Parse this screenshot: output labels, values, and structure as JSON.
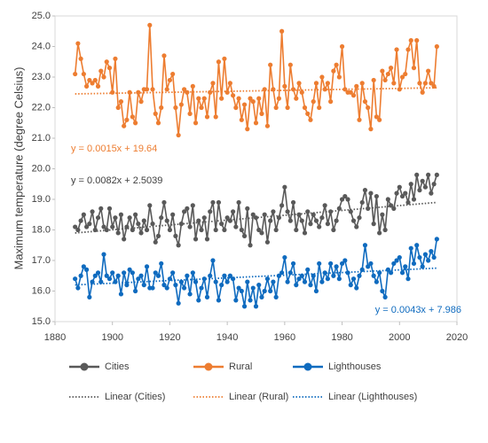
{
  "chart_data": {
    "type": "line",
    "y_label": "Maximum temperature (degree Celsius)",
    "x": [
      1887,
      1888,
      1889,
      1890,
      1891,
      1892,
      1893,
      1894,
      1895,
      1896,
      1897,
      1898,
      1899,
      1900,
      1901,
      1902,
      1903,
      1904,
      1905,
      1906,
      1907,
      1908,
      1909,
      1910,
      1911,
      1912,
      1913,
      1914,
      1915,
      1916,
      1917,
      1918,
      1919,
      1920,
      1921,
      1922,
      1923,
      1924,
      1925,
      1926,
      1927,
      1928,
      1929,
      1930,
      1931,
      1932,
      1933,
      1934,
      1935,
      1936,
      1937,
      1938,
      1939,
      1940,
      1941,
      1942,
      1943,
      1944,
      1945,
      1946,
      1947,
      1948,
      1949,
      1950,
      1951,
      1952,
      1953,
      1954,
      1955,
      1956,
      1957,
      1958,
      1959,
      1960,
      1961,
      1962,
      1963,
      1964,
      1965,
      1966,
      1967,
      1968,
      1969,
      1970,
      1971,
      1972,
      1973,
      1974,
      1975,
      1976,
      1977,
      1978,
      1979,
      1980,
      1981,
      1982,
      1983,
      1984,
      1985,
      1986,
      1987,
      1988,
      1989,
      1990,
      1991,
      1992,
      1993,
      1994,
      1995,
      1996,
      1997,
      1998,
      1999,
      2000,
      2001,
      2002,
      2003,
      2004,
      2005,
      2006,
      2007,
      2008,
      2009,
      2010,
      2011,
      2012,
      2013
    ],
    "series": [
      {
        "name": "Cities",
        "color": "#595959",
        "values": [
          18.1,
          18.0,
          18.3,
          18.5,
          18.1,
          18.2,
          18.6,
          18.0,
          18.4,
          18.7,
          18.1,
          18.0,
          18.7,
          18.1,
          18.4,
          17.9,
          18.5,
          17.7,
          18.1,
          18.4,
          18.0,
          18.5,
          18.2,
          17.9,
          18.3,
          18.0,
          18.8,
          18.2,
          17.6,
          17.8,
          18.4,
          18.9,
          18.3,
          18.0,
          18.5,
          17.8,
          17.5,
          18.2,
          18.6,
          18.7,
          18.1,
          18.8,
          17.7,
          18.3,
          18.0,
          18.4,
          17.7,
          18.6,
          18.9,
          18.0,
          18.9,
          18.2,
          18.0,
          18.4,
          18.3,
          18.6,
          18.1,
          18.9,
          18.0,
          17.8,
          18.7,
          17.5,
          18.5,
          18.4,
          18.0,
          17.9,
          18.5,
          17.6,
          18.3,
          18.6,
          18.0,
          18.4,
          18.8,
          19.4,
          18.6,
          18.3,
          18.9,
          18.0,
          18.5,
          18.3,
          17.9,
          18.6,
          18.2,
          18.5,
          18.3,
          18.1,
          18.4,
          18.8,
          18.2,
          18.6,
          18.0,
          18.3,
          18.7,
          19.0,
          19.1,
          19.0,
          18.6,
          18.3,
          18.1,
          18.4,
          18.9,
          19.3,
          18.7,
          19.2,
          18.2,
          19.1,
          17.9,
          18.5,
          18.0,
          19.0,
          18.8,
          18.7,
          19.2,
          19.4,
          19.1,
          19.2,
          18.9,
          19.5,
          19.0,
          19.8,
          19.3,
          19.6,
          19.4,
          19.8,
          19.2,
          19.5,
          19.8
        ]
      },
      {
        "name": "Rural",
        "color": "#ed7d31",
        "values": [
          23.1,
          24.1,
          23.6,
          23.1,
          22.7,
          22.9,
          22.8,
          22.9,
          22.7,
          23.2,
          23.0,
          23.5,
          23.3,
          22.5,
          23.6,
          22.0,
          22.2,
          21.4,
          21.6,
          22.5,
          21.7,
          21.5,
          22.5,
          22.2,
          22.6,
          22.6,
          24.7,
          22.6,
          21.8,
          21.5,
          22.0,
          23.7,
          22.6,
          22.9,
          23.1,
          22.0,
          21.1,
          22.1,
          22.6,
          22.5,
          21.8,
          22.7,
          21.5,
          22.3,
          22.0,
          22.3,
          21.7,
          22.5,
          22.8,
          21.7,
          23.5,
          22.3,
          23.6,
          22.5,
          22.8,
          22.4,
          22.0,
          22.3,
          21.6,
          22.1,
          21.3,
          22.3,
          22.2,
          21.5,
          22.3,
          21.8,
          22.6,
          21.4,
          23.4,
          22.6,
          22.0,
          22.3,
          24.5,
          22.7,
          22.0,
          23.4,
          22.6,
          22.3,
          22.8,
          22.5,
          22.0,
          21.8,
          21.6,
          22.2,
          22.8,
          22.0,
          23.0,
          22.6,
          22.8,
          22.2,
          23.2,
          23.4,
          23.0,
          24.0,
          22.6,
          22.5,
          22.5,
          22.4,
          22.7,
          21.6,
          22.8,
          22.2,
          22.0,
          21.3,
          22.9,
          21.7,
          21.6,
          23.2,
          22.9,
          23.1,
          23.3,
          22.8,
          23.9,
          22.6,
          23.0,
          23.1,
          23.9,
          24.2,
          23.3,
          24.2,
          22.8,
          22.5,
          22.8,
          23.2,
          22.8,
          22.7,
          24.0
        ]
      },
      {
        "name": "Lighthouses",
        "color": "#0f6bbf",
        "values": [
          16.4,
          16.1,
          16.5,
          16.8,
          16.7,
          15.8,
          16.3,
          16.5,
          16.6,
          16.3,
          17.2,
          16.5,
          16.4,
          16.6,
          16.3,
          16.5,
          15.9,
          16.6,
          16.2,
          16.7,
          16.6,
          16.0,
          16.4,
          16.5,
          16.2,
          16.8,
          16.1,
          16.1,
          16.6,
          16.5,
          16.9,
          16.2,
          16.1,
          16.4,
          16.6,
          16.2,
          15.6,
          16.3,
          16.1,
          16.5,
          15.9,
          16.6,
          16.3,
          15.7,
          16.1,
          16.4,
          15.8,
          16.5,
          17.0,
          16.3,
          15.7,
          16.2,
          16.5,
          16.3,
          16.5,
          16.4,
          15.7,
          16.1,
          16.0,
          15.5,
          16.3,
          15.7,
          16.1,
          15.5,
          16.2,
          15.8,
          16.0,
          16.4,
          16.0,
          16.3,
          15.8,
          16.5,
          16.6,
          17.1,
          16.3,
          16.6,
          16.9,
          16.2,
          16.4,
          16.5,
          16.3,
          16.7,
          16.2,
          16.5,
          16.0,
          16.9,
          16.3,
          16.6,
          16.4,
          16.9,
          16.5,
          16.8,
          16.4,
          16.9,
          17.0,
          16.6,
          16.2,
          16.4,
          16.1,
          16.5,
          16.7,
          17.5,
          16.8,
          16.9,
          16.5,
          16.3,
          16.6,
          16.0,
          15.8,
          16.7,
          16.6,
          16.9,
          17.0,
          17.1,
          16.6,
          16.8,
          16.4,
          17.4,
          16.9,
          17.5,
          17.1,
          16.8,
          17.2,
          17.0,
          17.3,
          17.1,
          17.7
        ]
      }
    ],
    "trendlines": [
      {
        "name": "Linear (Cities)",
        "color": "#595959",
        "x": [
          1887,
          2013
        ],
        "values": [
          17.9,
          18.9
        ]
      },
      {
        "name": "Linear (Rural)",
        "color": "#ed7d31",
        "x": [
          1887,
          2013
        ],
        "values": [
          22.45,
          22.65
        ]
      },
      {
        "name": "Linear (Lighthouses)",
        "color": "#0f6bbf",
        "x": [
          1887,
          2013
        ],
        "values": [
          16.2,
          16.75
        ]
      }
    ],
    "annotations": [
      {
        "text": "y = 0.0015x + 19.64",
        "color": "#ed7d31"
      },
      {
        "text": "y = 0.0082x + 2.5039",
        "color": "#404040"
      },
      {
        "text": "y = 0.0043x + 7.986",
        "color": "#0f6bbf"
      }
    ],
    "xlim": [
      1880,
      2020
    ],
    "xticks": [
      1880,
      1900,
      1920,
      1940,
      1960,
      1980,
      2000,
      2020
    ],
    "ylim": [
      15,
      25
    ],
    "yticks": [
      {
        "value": 15,
        "label": "15.0"
      },
      {
        "value": 16,
        "label": "16.0"
      },
      {
        "value": 17,
        "label": "17.0"
      },
      {
        "value": 18,
        "label": "18.0"
      },
      {
        "value": 19,
        "label": "19.0"
      },
      {
        "value": 20,
        "label": "20.0"
      },
      {
        "value": 21,
        "label": "21.0"
      },
      {
        "value": 22,
        "label": "22.0"
      },
      {
        "value": 23,
        "label": "23.0"
      },
      {
        "value": 24,
        "label": "24.0"
      },
      {
        "value": 25,
        "label": "25.0"
      }
    ],
    "legend": "bottom"
  }
}
